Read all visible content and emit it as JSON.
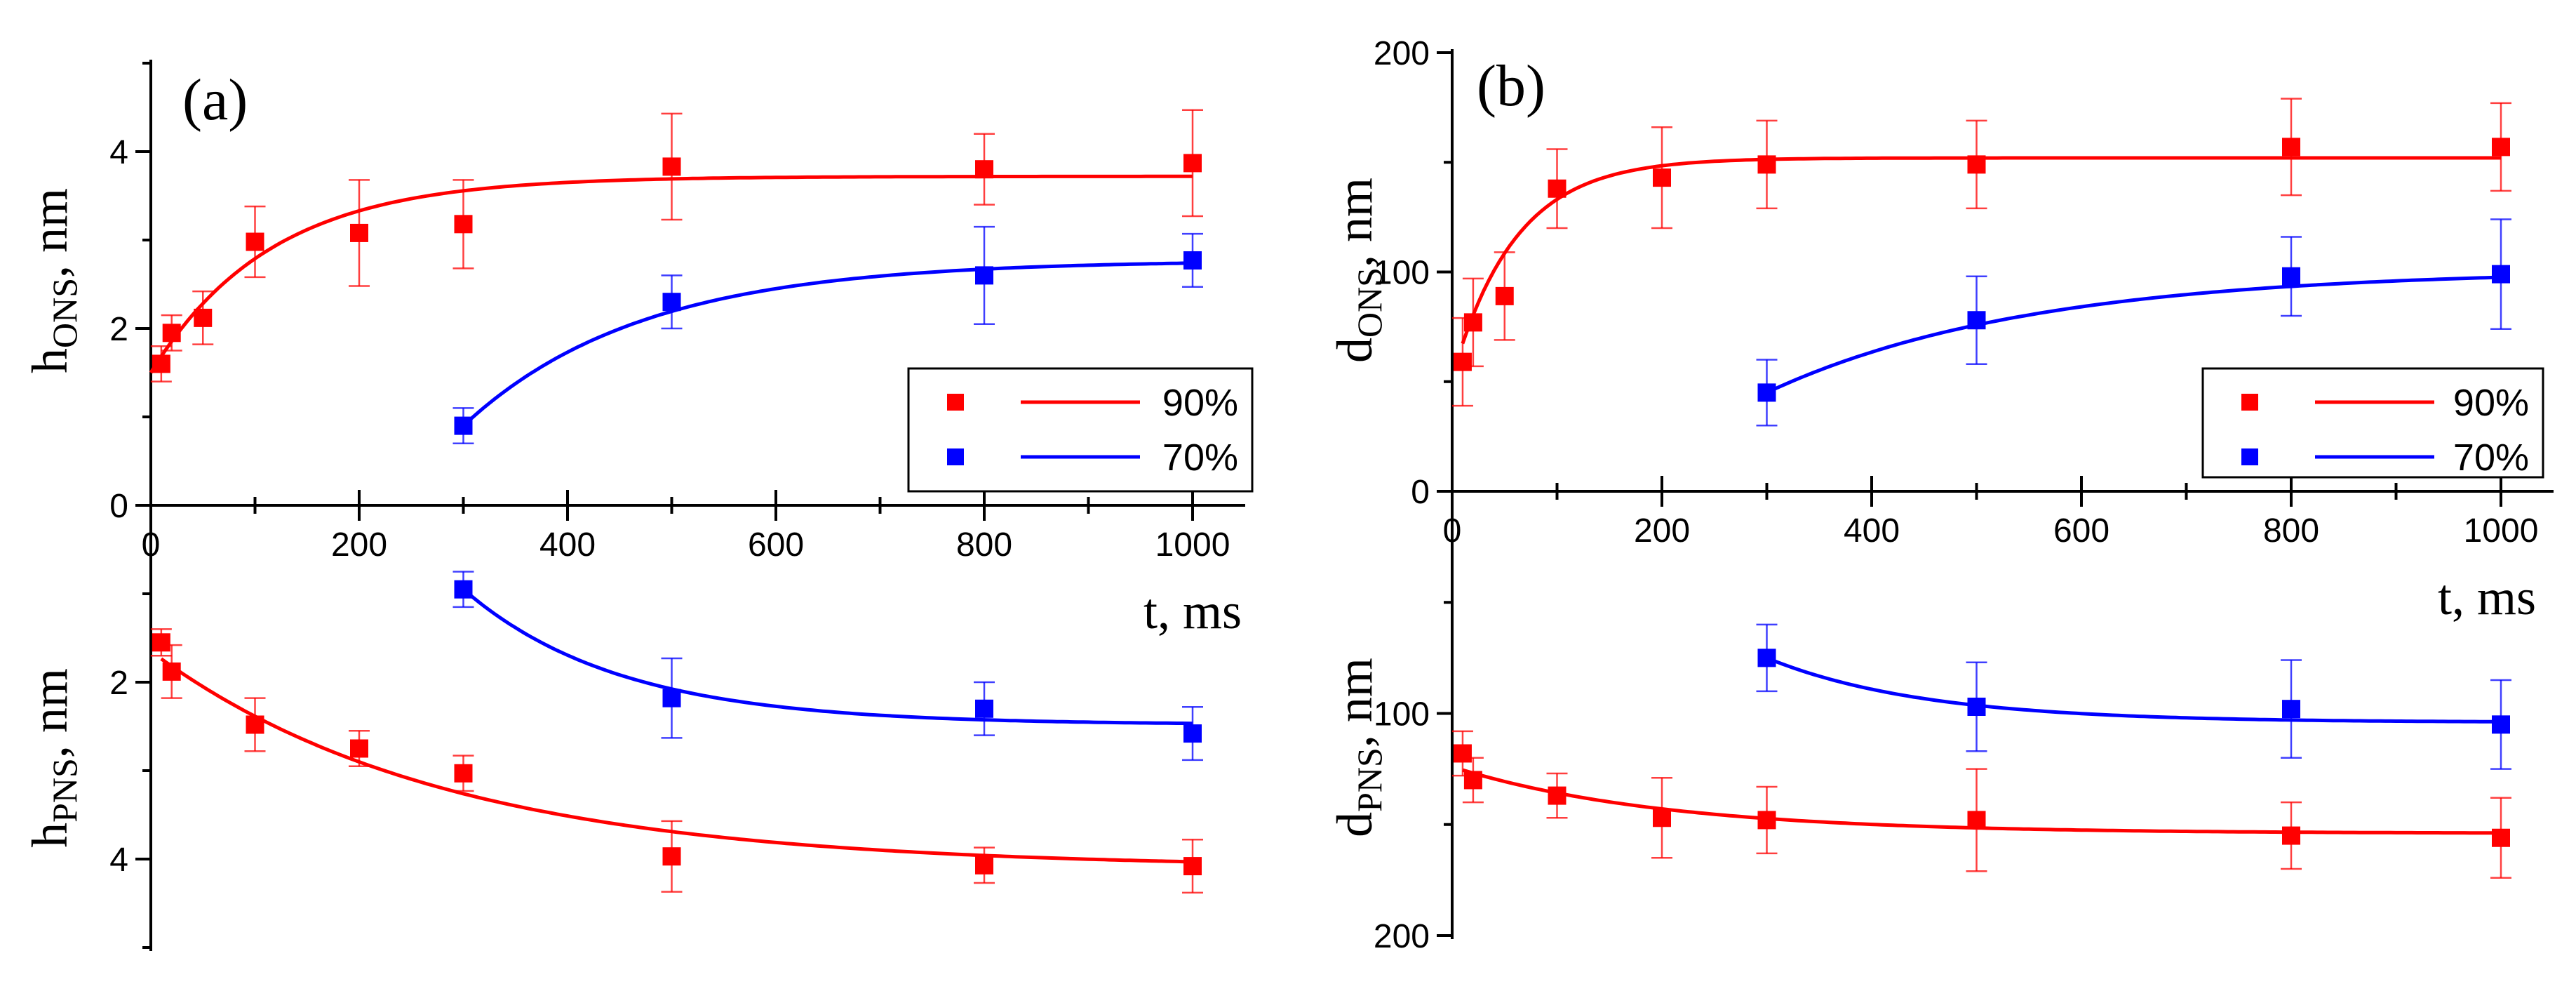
{
  "chart_data": [
    {
      "id": "a",
      "type": "scatter",
      "panel_label": "(a)",
      "xlabel": "t, ms",
      "x_ticks": [
        0,
        200,
        400,
        600,
        800,
        1000
      ],
      "xlim": [
        0,
        1050
      ],
      "top": {
        "ylabel_main": "h",
        "ylabel_sub": "ONS",
        "ylabel_unit": ", nm",
        "ylim": [
          0,
          5
        ],
        "y_ticks": [
          0,
          2,
          4
        ],
        "inverted": false,
        "series": [
          {
            "name": "90%",
            "color": "#ff0000",
            "points": [
              {
                "x": 10,
                "y": 1.6,
                "err": 0.2
              },
              {
                "x": 20,
                "y": 1.95,
                "err": 0.2
              },
              {
                "x": 50,
                "y": 2.12,
                "err": 0.3
              },
              {
                "x": 100,
                "y": 2.98,
                "err": 0.4
              },
              {
                "x": 200,
                "y": 3.08,
                "err": 0.6
              },
              {
                "x": 300,
                "y": 3.18,
                "err": 0.5
              },
              {
                "x": 500,
                "y": 3.83,
                "err": 0.6
              },
              {
                "x": 800,
                "y": 3.8,
                "err": 0.4
              },
              {
                "x": 1000,
                "y": 3.87,
                "err": 0.6
              }
            ],
            "fit": {
              "a": 3.72,
              "b": 2.22,
              "tau": 115,
              "t0": 0,
              "from": 0,
              "to": 1000
            }
          },
          {
            "name": "70%",
            "color": "#0000ff",
            "points": [
              {
                "x": 300,
                "y": 0.9,
                "err": 0.2
              },
              {
                "x": 500,
                "y": 2.3,
                "err": 0.3
              },
              {
                "x": 800,
                "y": 2.6,
                "err": 0.55
              },
              {
                "x": 1000,
                "y": 2.77,
                "err": 0.3
              }
            ],
            "fit": {
              "a": 2.77,
              "b": 1.87,
              "tau": 170,
              "t0": 300,
              "from": 300,
              "to": 1000
            }
          }
        ]
      },
      "bottom": {
        "ylabel_main": "h",
        "ylabel_sub": "PNS",
        "ylabel_unit": ", nm",
        "ylim": [
          0.4,
          5
        ],
        "y_ticks": [
          2,
          4
        ],
        "inverted": true,
        "series": [
          {
            "name": "70%",
            "color": "#0000ff",
            "points": [
              {
                "x": 300,
                "y": 0.95,
                "err": 0.2
              },
              {
                "x": 500,
                "y": 2.18,
                "err": 0.45
              },
              {
                "x": 800,
                "y": 2.3,
                "err": 0.3
              },
              {
                "x": 1000,
                "y": 2.58,
                "err": 0.3
              }
            ],
            "fit": {
              "a": 2.48,
              "b": 1.53,
              "tau": 150,
              "t0": 300,
              "from": 300,
              "to": 1000
            }
          },
          {
            "name": "90%",
            "color": "#ff0000",
            "points": [
              {
                "x": 10,
                "y": 1.55,
                "err": 0.15
              },
              {
                "x": 20,
                "y": 1.88,
                "err": 0.3
              },
              {
                "x": 100,
                "y": 2.48,
                "err": 0.3
              },
              {
                "x": 200,
                "y": 2.75,
                "err": 0.2
              },
              {
                "x": 300,
                "y": 3.03,
                "err": 0.2
              },
              {
                "x": 500,
                "y": 3.97,
                "err": 0.4
              },
              {
                "x": 800,
                "y": 4.07,
                "err": 0.2
              },
              {
                "x": 1000,
                "y": 4.08,
                "err": 0.3
              }
            ],
            "fit": {
              "a": 4.1,
              "b": 2.45,
              "tau": 280,
              "t0": 0,
              "from": 10,
              "to": 1000
            }
          }
        ]
      },
      "legend": [
        {
          "label": "90%",
          "color": "#ff0000"
        },
        {
          "label": "70%",
          "color": "#0000ff"
        }
      ]
    },
    {
      "id": "b",
      "type": "scatter",
      "panel_label": "(b)",
      "xlabel": "t, ms",
      "x_ticks": [
        0,
        200,
        400,
        600,
        800,
        1000
      ],
      "xlim": [
        0,
        1050
      ],
      "top": {
        "ylabel_main": "d",
        "ylabel_sub": "ONS",
        "ylabel_unit": ", nm",
        "ylim": [
          0,
          200
        ],
        "y_ticks": [
          0,
          100,
          200
        ],
        "inverted": false,
        "series": [
          {
            "name": "90%",
            "color": "#ff0000",
            "points": [
              {
                "x": 10,
                "y": 59,
                "err": 20
              },
              {
                "x": 20,
                "y": 77,
                "err": 20
              },
              {
                "x": 50,
                "y": 89,
                "err": 20
              },
              {
                "x": 100,
                "y": 138,
                "err": 18
              },
              {
                "x": 200,
                "y": 143,
                "err": 23
              },
              {
                "x": 300,
                "y": 149,
                "err": 20
              },
              {
                "x": 500,
                "y": 149,
                "err": 20
              },
              {
                "x": 800,
                "y": 157,
                "err": 22
              },
              {
                "x": 1000,
                "y": 157,
                "err": 20
              }
            ],
            "fit": {
              "a": 152,
              "b": 100,
              "tau": 60,
              "t0": 0,
              "from": 10,
              "to": 1000
            }
          },
          {
            "name": "70%",
            "color": "#0000ff",
            "points": [
              {
                "x": 300,
                "y": 45,
                "err": 15
              },
              {
                "x": 500,
                "y": 78,
                "err": 20
              },
              {
                "x": 800,
                "y": 98,
                "err": 18
              },
              {
                "x": 1000,
                "y": 99,
                "err": 25
              }
            ],
            "fit": {
              "a": 101,
              "b": 56,
              "tau": 250,
              "t0": 300,
              "from": 300,
              "to": 1000
            }
          }
        ]
      },
      "bottom": {
        "ylabel_main": "d",
        "ylabel_sub": "PNS",
        "ylabel_unit": ", nm",
        "ylim": [
          40,
          200
        ],
        "y_ticks": [
          100,
          200
        ],
        "inverted": true,
        "series": [
          {
            "name": "70%",
            "color": "#0000ff",
            "points": [
              {
                "x": 300,
                "y": 75,
                "err": 15
              },
              {
                "x": 500,
                "y": 97,
                "err": 20
              },
              {
                "x": 800,
                "y": 98,
                "err": 22
              },
              {
                "x": 1000,
                "y": 105,
                "err": 20
              }
            ],
            "fit": {
              "a": 104,
              "b": 29,
              "tau": 150,
              "t0": 300,
              "from": 300,
              "to": 1000
            }
          },
          {
            "name": "90%",
            "color": "#ff0000",
            "points": [
              {
                "x": 10,
                "y": 118,
                "err": 10
              },
              {
                "x": 20,
                "y": 130,
                "err": 10
              },
              {
                "x": 100,
                "y": 137,
                "err": 10
              },
              {
                "x": 200,
                "y": 147,
                "err": 18
              },
              {
                "x": 300,
                "y": 148,
                "err": 15
              },
              {
                "x": 500,
                "y": 148,
                "err": 23
              },
              {
                "x": 800,
                "y": 155,
                "err": 15
              },
              {
                "x": 1000,
                "y": 156,
                "err": 18
              }
            ],
            "fit": {
              "a": 154,
              "b": 30,
              "tau": 200,
              "t0": 0,
              "from": 10,
              "to": 1000
            }
          }
        ]
      },
      "legend": [
        {
          "label": "90%",
          "color": "#ff0000"
        },
        {
          "label": "70%",
          "color": "#0000ff"
        }
      ]
    }
  ]
}
